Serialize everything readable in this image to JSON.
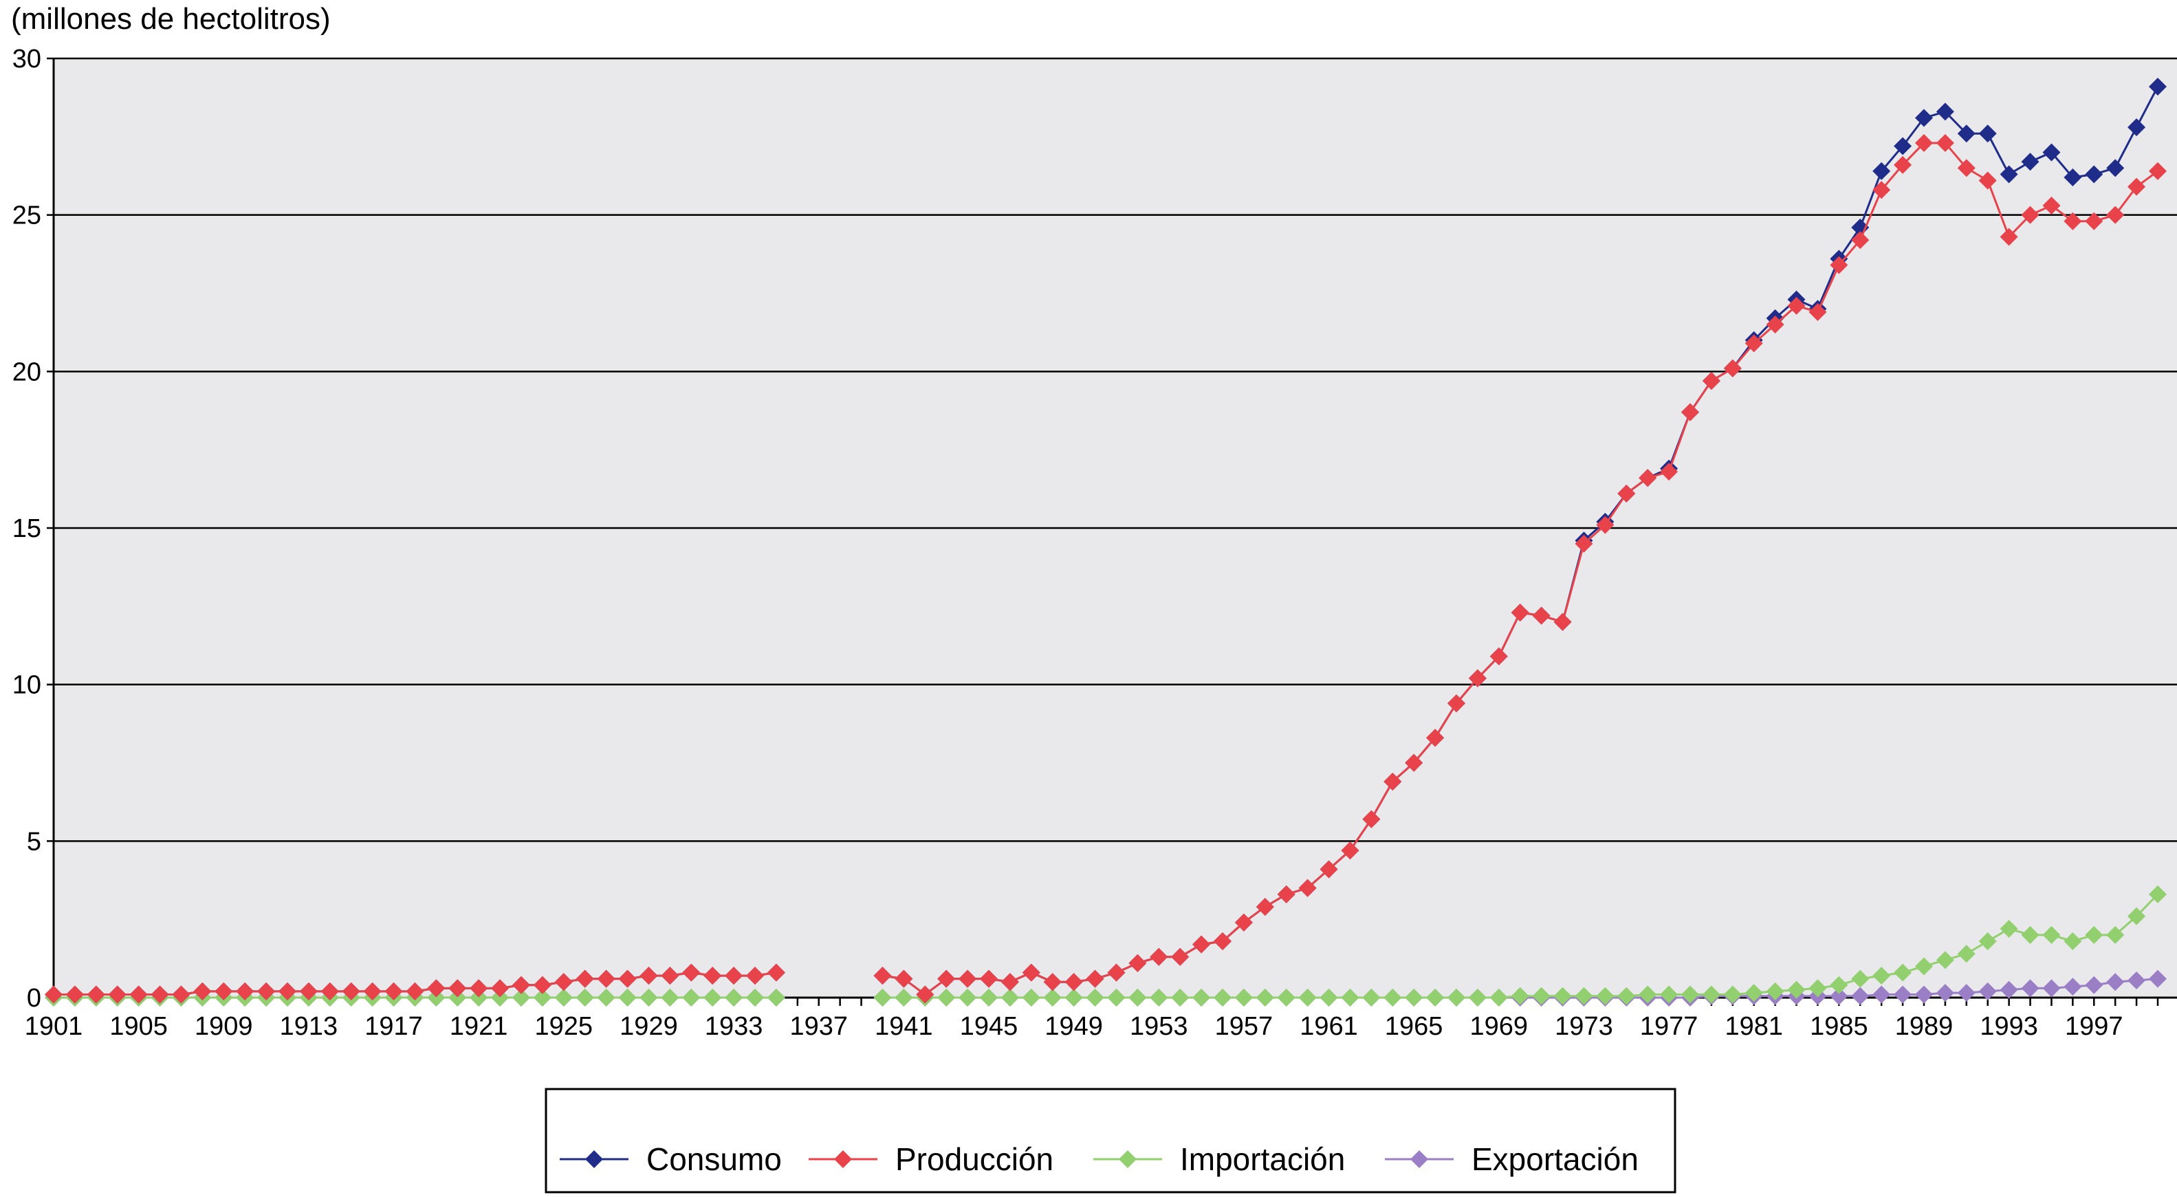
{
  "chart_data": {
    "type": "line",
    "title": "",
    "ylabel": "(millones de hectolitros)",
    "xlabel": "",
    "xlim": [
      1901,
      2000
    ],
    "ylim": [
      0,
      30
    ],
    "y_ticks": [
      "0",
      "5",
      "10",
      "15",
      "20",
      "25",
      "30"
    ],
    "x_ticks": [
      "1901",
      "1905",
      "1909",
      "1913",
      "1917",
      "1921",
      "1925",
      "1929",
      "1933",
      "1937",
      "1941",
      "1945",
      "1949",
      "1953",
      "1957",
      "1961",
      "1965",
      "1969",
      "1973",
      "1977",
      "1981",
      "1985",
      "1989",
      "1993",
      "1997"
    ],
    "grid": "horizontal",
    "legend_position": "bottom",
    "plot_background": "#e9e9eb",
    "series": [
      {
        "name": "Consumo",
        "color": "#1f2c8a",
        "marker": "diamond",
        "x": [
          1901,
          1902,
          1903,
          1904,
          1905,
          1906,
          1907,
          1908,
          1909,
          1910,
          1911,
          1912,
          1913,
          1914,
          1915,
          1916,
          1917,
          1918,
          1919,
          1920,
          1921,
          1922,
          1923,
          1924,
          1925,
          1926,
          1927,
          1928,
          1929,
          1930,
          1931,
          1932,
          1933,
          1934,
          1935,
          1936,
          1937,
          1938,
          1939,
          1940,
          1941,
          1942,
          1943,
          1944,
          1945,
          1946,
          1947,
          1948,
          1949,
          1950,
          1951,
          1952,
          1953,
          1954,
          1955,
          1956,
          1957,
          1958,
          1959,
          1960,
          1961,
          1962,
          1963,
          1964,
          1965,
          1966,
          1967,
          1968,
          1969,
          1970,
          1971,
          1972,
          1973,
          1974,
          1975,
          1976,
          1977,
          1978,
          1979,
          1980,
          1981,
          1982,
          1983,
          1984,
          1985,
          1986,
          1987,
          1988,
          1989,
          1990,
          1991,
          1992,
          1993,
          1994,
          1995,
          1996,
          1997,
          1998,
          1999,
          2000
        ],
        "y": [
          0.1,
          0.1,
          0.1,
          0.1,
          0.1,
          0.1,
          0.1,
          0.2,
          0.2,
          0.2,
          0.2,
          0.2,
          0.2,
          0.2,
          0.2,
          0.2,
          0.2,
          0.2,
          0.3,
          0.3,
          0.3,
          0.3,
          0.4,
          0.4,
          0.5,
          0.6,
          0.6,
          0.6,
          0.7,
          0.7,
          0.8,
          0.7,
          0.7,
          0.7,
          0.8,
          null,
          null,
          null,
          null,
          0.7,
          0.6,
          0.1,
          0.6,
          0.6,
          0.6,
          0.5,
          0.8,
          0.5,
          0.5,
          0.6,
          0.8,
          1.1,
          1.3,
          1.3,
          1.7,
          1.8,
          2.4,
          2.9,
          3.3,
          3.5,
          4.1,
          4.7,
          5.7,
          6.9,
          7.5,
          8.3,
          9.4,
          10.2,
          10.9,
          12.3,
          12.2,
          12.0,
          14.6,
          15.2,
          16.1,
          16.6,
          16.9,
          18.7,
          19.7,
          20.1,
          21.0,
          21.7,
          22.3,
          22.0,
          23.6,
          24.6,
          26.4,
          27.2,
          28.1,
          28.3,
          27.6,
          27.6,
          26.3,
          26.7,
          27.0,
          26.2,
          26.3,
          26.5,
          27.8,
          29.1
        ]
      },
      {
        "name": "Producción",
        "color": "#e8424a",
        "marker": "diamond",
        "x": [
          1901,
          1902,
          1903,
          1904,
          1905,
          1906,
          1907,
          1908,
          1909,
          1910,
          1911,
          1912,
          1913,
          1914,
          1915,
          1916,
          1917,
          1918,
          1919,
          1920,
          1921,
          1922,
          1923,
          1924,
          1925,
          1926,
          1927,
          1928,
          1929,
          1930,
          1931,
          1932,
          1933,
          1934,
          1935,
          1936,
          1937,
          1938,
          1939,
          1940,
          1941,
          1942,
          1943,
          1944,
          1945,
          1946,
          1947,
          1948,
          1949,
          1950,
          1951,
          1952,
          1953,
          1954,
          1955,
          1956,
          1957,
          1958,
          1959,
          1960,
          1961,
          1962,
          1963,
          1964,
          1965,
          1966,
          1967,
          1968,
          1969,
          1970,
          1971,
          1972,
          1973,
          1974,
          1975,
          1976,
          1977,
          1978,
          1979,
          1980,
          1981,
          1982,
          1983,
          1984,
          1985,
          1986,
          1987,
          1988,
          1989,
          1990,
          1991,
          1992,
          1993,
          1994,
          1995,
          1996,
          1997,
          1998,
          1999,
          2000
        ],
        "y": [
          0.1,
          0.1,
          0.1,
          0.1,
          0.1,
          0.1,
          0.1,
          0.2,
          0.2,
          0.2,
          0.2,
          0.2,
          0.2,
          0.2,
          0.2,
          0.2,
          0.2,
          0.2,
          0.3,
          0.3,
          0.3,
          0.3,
          0.4,
          0.4,
          0.5,
          0.6,
          0.6,
          0.6,
          0.7,
          0.7,
          0.8,
          0.7,
          0.7,
          0.7,
          0.8,
          null,
          null,
          null,
          null,
          0.7,
          0.6,
          0.1,
          0.6,
          0.6,
          0.6,
          0.5,
          0.8,
          0.5,
          0.5,
          0.6,
          0.8,
          1.1,
          1.3,
          1.3,
          1.7,
          1.8,
          2.4,
          2.9,
          3.3,
          3.5,
          4.1,
          4.7,
          5.7,
          6.9,
          7.5,
          8.3,
          9.4,
          10.2,
          10.9,
          12.3,
          12.2,
          12.0,
          14.5,
          15.1,
          16.1,
          16.6,
          16.8,
          18.7,
          19.7,
          20.1,
          20.9,
          21.5,
          22.1,
          21.9,
          23.4,
          24.2,
          25.8,
          26.6,
          27.3,
          27.3,
          26.5,
          26.1,
          24.3,
          25.0,
          25.3,
          24.8,
          24.8,
          25.0,
          25.9,
          26.4
        ]
      },
      {
        "name": "Importación",
        "color": "#92cf6e",
        "marker": "diamond",
        "x": [
          1901,
          1902,
          1903,
          1904,
          1905,
          1906,
          1907,
          1908,
          1909,
          1910,
          1911,
          1912,
          1913,
          1914,
          1915,
          1916,
          1917,
          1918,
          1919,
          1920,
          1921,
          1922,
          1923,
          1924,
          1925,
          1926,
          1927,
          1928,
          1929,
          1930,
          1931,
          1932,
          1933,
          1934,
          1935,
          1936,
          1937,
          1938,
          1939,
          1940,
          1941,
          1942,
          1943,
          1944,
          1945,
          1946,
          1947,
          1948,
          1949,
          1950,
          1951,
          1952,
          1953,
          1954,
          1955,
          1956,
          1957,
          1958,
          1959,
          1960,
          1961,
          1962,
          1963,
          1964,
          1965,
          1966,
          1967,
          1968,
          1969,
          1970,
          1971,
          1972,
          1973,
          1974,
          1975,
          1976,
          1977,
          1978,
          1979,
          1980,
          1981,
          1982,
          1983,
          1984,
          1985,
          1986,
          1987,
          1988,
          1989,
          1990,
          1991,
          1992,
          1993,
          1994,
          1995,
          1996,
          1997,
          1998,
          1999,
          2000
        ],
        "y": [
          0,
          0,
          0,
          0,
          0,
          0,
          0,
          0,
          0,
          0,
          0,
          0,
          0,
          0,
          0,
          0,
          0,
          0,
          0,
          0,
          0,
          0,
          0,
          0,
          0,
          0,
          0,
          0,
          0,
          0,
          0,
          0,
          0,
          0,
          0,
          null,
          null,
          null,
          null,
          0,
          0,
          0,
          0,
          0,
          0,
          0,
          0,
          0,
          0,
          0,
          0,
          0,
          0,
          0,
          0,
          0,
          0,
          0,
          0,
          0,
          0,
          0,
          0,
          0,
          0,
          0,
          0,
          0,
          0,
          0.05,
          0.05,
          0.05,
          0.05,
          0.05,
          0.05,
          0.1,
          0.1,
          0.1,
          0.1,
          0.1,
          0.15,
          0.2,
          0.25,
          0.3,
          0.4,
          0.6,
          0.7,
          0.8,
          1.0,
          1.2,
          1.4,
          1.8,
          2.2,
          2.0,
          2.0,
          1.8,
          2.0,
          2.0,
          2.6,
          3.3
        ]
      },
      {
        "name": "Exportación",
        "color": "#9a7ec6",
        "marker": "diamond",
        "x": [
          1901,
          1902,
          1903,
          1904,
          1905,
          1906,
          1907,
          1908,
          1909,
          1910,
          1911,
          1912,
          1913,
          1914,
          1915,
          1916,
          1917,
          1918,
          1919,
          1920,
          1921,
          1922,
          1923,
          1924,
          1925,
          1926,
          1927,
          1928,
          1929,
          1930,
          1931,
          1932,
          1933,
          1934,
          1935,
          1936,
          1937,
          1938,
          1939,
          1940,
          1941,
          1942,
          1943,
          1944,
          1945,
          1946,
          1947,
          1948,
          1949,
          1950,
          1951,
          1952,
          1953,
          1954,
          1955,
          1956,
          1957,
          1958,
          1959,
          1960,
          1961,
          1962,
          1963,
          1964,
          1965,
          1966,
          1967,
          1968,
          1969,
          1970,
          1971,
          1972,
          1973,
          1974,
          1975,
          1976,
          1977,
          1978,
          1979,
          1980,
          1981,
          1982,
          1983,
          1984,
          1985,
          1986,
          1987,
          1988,
          1989,
          1990,
          1991,
          1992,
          1993,
          1994,
          1995,
          1996,
          1997,
          1998,
          1999,
          2000
        ],
        "y": [
          0,
          0,
          0,
          0,
          0,
          0,
          0,
          0,
          0,
          0,
          0,
          0,
          0,
          0,
          0,
          0,
          0,
          0,
          0,
          0,
          0,
          0,
          0,
          0,
          0,
          0,
          0,
          0,
          0,
          0,
          0,
          0,
          0,
          0,
          0,
          null,
          null,
          null,
          null,
          0,
          0,
          0,
          0,
          0,
          0,
          0,
          0,
          0,
          0,
          0,
          0,
          0,
          0,
          0,
          0,
          0,
          0,
          0,
          0,
          0,
          0,
          0,
          0,
          0,
          0,
          0,
          0,
          0,
          0,
          0,
          0,
          0,
          0,
          0,
          0,
          0,
          0,
          0,
          0.05,
          0.05,
          0.05,
          0.05,
          0.05,
          0.05,
          0.05,
          0.05,
          0.1,
          0.1,
          0.1,
          0.15,
          0.15,
          0.2,
          0.25,
          0.3,
          0.3,
          0.35,
          0.4,
          0.5,
          0.55,
          0.6
        ]
      }
    ]
  }
}
